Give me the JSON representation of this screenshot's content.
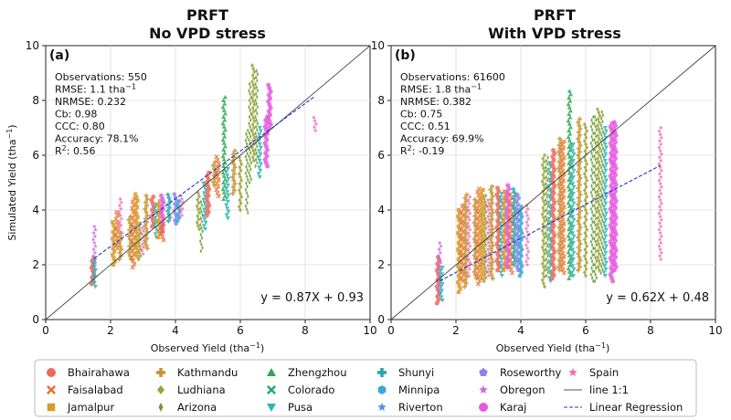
{
  "y_axis_label": "Simulated Yield (tha",
  "y_axis_label_sup": "−1",
  "y_axis_label_end": ")",
  "legend": {
    "entries": [
      {
        "name": "Bhairahawa",
        "color": "#ec6a5c",
        "marker": "circle"
      },
      {
        "name": "Faisalabad",
        "color": "#e8702a",
        "marker": "x"
      },
      {
        "name": "Jamalpur",
        "color": "#d89a2a",
        "marker": "square"
      },
      {
        "name": "Kathmandu",
        "color": "#c6922e",
        "marker": "plus"
      },
      {
        "name": "Ludhiana",
        "color": "#9aa234",
        "marker": "diamond"
      },
      {
        "name": "Arizona",
        "color": "#6c9b32",
        "marker": "thin-diamond"
      },
      {
        "name": "Zhengzhou",
        "color": "#2eaa56",
        "marker": "triangle-up"
      },
      {
        "name": "Colorado",
        "color": "#1ea882",
        "marker": "x"
      },
      {
        "name": "Pusa",
        "color": "#2cb5b5",
        "marker": "triangle-down"
      },
      {
        "name": "Shunyi",
        "color": "#22a7b0",
        "marker": "plus"
      },
      {
        "name": "Minnipa",
        "color": "#3ba6d8",
        "marker": "hexagon"
      },
      {
        "name": "Riverton",
        "color": "#5a8fe0",
        "marker": "star"
      },
      {
        "name": "Roseworthy",
        "color": "#8f82e6",
        "marker": "pentagon"
      },
      {
        "name": "Obregon",
        "color": "#c46ce6",
        "marker": "star"
      },
      {
        "name": "Karaj",
        "color": "#e45ae0",
        "marker": "circle"
      },
      {
        "name": "Spain",
        "color": "#ee6cb8",
        "marker": "star"
      },
      {
        "name": "line 1:1",
        "color": "#555555",
        "marker": "line"
      },
      {
        "name": "Linear Regression",
        "color": "#2233cc",
        "marker": "dashed"
      }
    ]
  },
  "chart_data": [
    {
      "type": "scatter",
      "title_line1": "PRFT",
      "title_line2": "No VPD stress",
      "panel_label": "(a)",
      "xlabel": "Observed Yield (tha",
      "xlabel_sup": "−1",
      "xlabel_end": ")",
      "xlim": [
        0,
        10
      ],
      "ylim": [
        0,
        10
      ],
      "xticks": [
        0,
        2,
        4,
        6,
        8,
        10
      ],
      "yticks": [
        0,
        2,
        4,
        6,
        8,
        10
      ],
      "grid": true,
      "stats": [
        {
          "text": "Observations: 550"
        },
        {
          "text": "RMSE: 1.1 tha",
          "sup": "−1"
        },
        {
          "text": "NRMSE: 0.232"
        },
        {
          "text": "Cb: 0.98"
        },
        {
          "text": "CCC: 0.80"
        },
        {
          "text": "Accuracy: 78.1%"
        },
        {
          "text": "R",
          "sup": "2",
          "after": ": 0.56"
        }
      ],
      "equation": "y = 0.87X + 0.93",
      "regression": {
        "slope": 0.87,
        "intercept": 0.93,
        "x_range": [
          1.5,
          8.3
        ]
      },
      "columns": [
        {
          "x": 1.45,
          "y": [
            1.3,
            2.3
          ],
          "site": 0
        },
        {
          "x": 1.5,
          "y": [
            1.6,
            3.4
          ],
          "site": 13
        },
        {
          "x": 1.5,
          "y": [
            1.2,
            2.2
          ],
          "site": 8
        },
        {
          "x": 2.1,
          "y": [
            2.0,
            3.6
          ],
          "site": 2
        },
        {
          "x": 2.2,
          "y": [
            2.6,
            4.0
          ],
          "site": 1
        },
        {
          "x": 2.3,
          "y": [
            2.2,
            3.2
          ],
          "site": 3
        },
        {
          "x": 2.3,
          "y": [
            3.2,
            4.4
          ],
          "site": 15
        },
        {
          "x": 2.6,
          "y": [
            2.2,
            3.8
          ],
          "site": 3
        },
        {
          "x": 2.7,
          "y": [
            1.9,
            4.5
          ],
          "site": 1
        },
        {
          "x": 2.8,
          "y": [
            2.3,
            4.6
          ],
          "site": 2
        },
        {
          "x": 2.9,
          "y": [
            2.2,
            3.6
          ],
          "site": 4
        },
        {
          "x": 3.0,
          "y": [
            2.4,
            3.4
          ],
          "site": 15
        },
        {
          "x": 3.1,
          "y": [
            2.6,
            4.6
          ],
          "site": 3
        },
        {
          "x": 3.3,
          "y": [
            3.4,
            4.5
          ],
          "site": 0
        },
        {
          "x": 3.4,
          "y": [
            3.0,
            4.3
          ],
          "site": 8
        },
        {
          "x": 3.5,
          "y": [
            3.0,
            4.4
          ],
          "site": 2
        },
        {
          "x": 3.6,
          "y": [
            3.2,
            4.6
          ],
          "site": 14
        },
        {
          "x": 3.6,
          "y": [
            2.9,
            3.6
          ],
          "site": 1
        },
        {
          "x": 3.8,
          "y": [
            3.6,
            4.6
          ],
          "site": 9
        },
        {
          "x": 4.0,
          "y": [
            3.5,
            4.6
          ],
          "site": 12
        },
        {
          "x": 4.1,
          "y": [
            3.6,
            4.4
          ],
          "site": 10
        },
        {
          "x": 4.2,
          "y": [
            3.8,
            4.6
          ],
          "site": 15
        },
        {
          "x": 4.7,
          "y": [
            3.3,
            4.7
          ],
          "site": 4
        },
        {
          "x": 4.8,
          "y": [
            2.5,
            4.3
          ],
          "site": 5
        },
        {
          "x": 4.9,
          "y": [
            3.3,
            5.0
          ],
          "site": 8
        },
        {
          "x": 5.0,
          "y": [
            3.8,
            5.4
          ],
          "site": 0
        },
        {
          "x": 5.2,
          "y": [
            4.9,
            5.8
          ],
          "site": 3
        },
        {
          "x": 5.3,
          "y": [
            4.5,
            6.0
          ],
          "site": 1
        },
        {
          "x": 5.5,
          "y": [
            4.4,
            8.2
          ],
          "site": 6
        },
        {
          "x": 5.6,
          "y": [
            3.7,
            5.5
          ],
          "site": 8
        },
        {
          "x": 5.8,
          "y": [
            4.6,
            6.2
          ],
          "site": 3
        },
        {
          "x": 6.0,
          "y": [
            4.0,
            6.0
          ],
          "site": 4
        },
        {
          "x": 6.2,
          "y": [
            3.9,
            7.0
          ],
          "site": 5
        },
        {
          "x": 6.3,
          "y": [
            5.0,
            8.6
          ],
          "site": 5
        },
        {
          "x": 6.4,
          "y": [
            5.8,
            9.3
          ],
          "site": 4
        },
        {
          "x": 6.5,
          "y": [
            5.6,
            9.1
          ],
          "site": 5
        },
        {
          "x": 6.6,
          "y": [
            5.2,
            7.0
          ],
          "site": 8
        },
        {
          "x": 6.8,
          "y": [
            5.6,
            7.4
          ],
          "site": 14
        },
        {
          "x": 6.9,
          "y": [
            7.0,
            8.6
          ],
          "site": 14
        },
        {
          "x": 8.3,
          "y": [
            6.9,
            7.4
          ],
          "site": 15
        }
      ]
    },
    {
      "type": "scatter",
      "title_line1": "PRFT",
      "title_line2": "With VPD stress",
      "panel_label": "(b)",
      "xlabel": "Observed Yield (tha",
      "xlabel_sup": "−1",
      "xlabel_end": ")",
      "xlim": [
        0,
        10
      ],
      "ylim": [
        0,
        10
      ],
      "xticks": [
        0,
        2,
        4,
        6,
        8,
        10
      ],
      "yticks": [
        0,
        2,
        4,
        6,
        8,
        10
      ],
      "grid": true,
      "stats": [
        {
          "text": "Observations: 61600"
        },
        {
          "text": "RMSE: 1.8 tha",
          "sup": "−1"
        },
        {
          "text": "NRMSE: 0.382"
        },
        {
          "text": "Cb: 0.75"
        },
        {
          "text": "CCC: 0.51"
        },
        {
          "text": "Accuracy: 69.9%"
        },
        {
          "text": "R",
          "sup": "2",
          "after": ": -0.19"
        }
      ],
      "equation": "y = 0.62X + 0.48",
      "regression": {
        "slope": 0.62,
        "intercept": 0.48,
        "x_range": [
          1.5,
          8.3
        ]
      },
      "columns": [
        {
          "x": 1.45,
          "y": [
            0.6,
            2.3
          ],
          "site": 0
        },
        {
          "x": 1.5,
          "y": [
            1.0,
            2.8
          ],
          "site": 13
        },
        {
          "x": 1.55,
          "y": [
            0.7,
            2.0
          ],
          "site": 8
        },
        {
          "x": 2.1,
          "y": [
            1.0,
            4.0
          ],
          "site": 2
        },
        {
          "x": 2.2,
          "y": [
            1.4,
            4.2
          ],
          "site": 1
        },
        {
          "x": 2.3,
          "y": [
            1.2,
            4.6
          ],
          "site": 3
        },
        {
          "x": 2.4,
          "y": [
            1.6,
            4.5
          ],
          "site": 15
        },
        {
          "x": 2.6,
          "y": [
            1.5,
            4.4
          ],
          "site": 3
        },
        {
          "x": 2.7,
          "y": [
            1.3,
            4.8
          ],
          "site": 1
        },
        {
          "x": 2.8,
          "y": [
            1.5,
            4.8
          ],
          "site": 2
        },
        {
          "x": 2.9,
          "y": [
            1.4,
            4.6
          ],
          "site": 4
        },
        {
          "x": 3.0,
          "y": [
            1.6,
            4.4
          ],
          "site": 15
        },
        {
          "x": 3.1,
          "y": [
            1.5,
            4.9
          ],
          "site": 3
        },
        {
          "x": 3.3,
          "y": [
            1.8,
            4.8
          ],
          "site": 0
        },
        {
          "x": 3.4,
          "y": [
            1.6,
            4.6
          ],
          "site": 8
        },
        {
          "x": 3.5,
          "y": [
            1.8,
            4.7
          ],
          "site": 2
        },
        {
          "x": 3.6,
          "y": [
            1.9,
            5.0
          ],
          "site": 14
        },
        {
          "x": 3.7,
          "y": [
            1.7,
            4.6
          ],
          "site": 1
        },
        {
          "x": 3.8,
          "y": [
            2.0,
            4.8
          ],
          "site": 9
        },
        {
          "x": 3.9,
          "y": [
            1.8,
            4.6
          ],
          "site": 12
        },
        {
          "x": 4.0,
          "y": [
            1.6,
            4.2
          ],
          "site": 10
        },
        {
          "x": 4.2,
          "y": [
            2.0,
            4.2
          ],
          "site": 15
        },
        {
          "x": 4.7,
          "y": [
            1.2,
            6.0
          ],
          "site": 4
        },
        {
          "x": 4.8,
          "y": [
            1.6,
            6.0
          ],
          "site": 5
        },
        {
          "x": 4.9,
          "y": [
            1.4,
            5.8
          ],
          "site": 8
        },
        {
          "x": 5.0,
          "y": [
            1.5,
            6.2
          ],
          "site": 0
        },
        {
          "x": 5.2,
          "y": [
            1.8,
            6.6
          ],
          "site": 3
        },
        {
          "x": 5.3,
          "y": [
            1.7,
            6.6
          ],
          "site": 1
        },
        {
          "x": 5.5,
          "y": [
            1.5,
            8.4
          ],
          "site": 6
        },
        {
          "x": 5.6,
          "y": [
            1.6,
            6.4
          ],
          "site": 8
        },
        {
          "x": 5.8,
          "y": [
            1.8,
            7.4
          ],
          "site": 3
        },
        {
          "x": 6.0,
          "y": [
            1.6,
            7.2
          ],
          "site": 4
        },
        {
          "x": 6.2,
          "y": [
            1.4,
            7.4
          ],
          "site": 5
        },
        {
          "x": 6.3,
          "y": [
            1.4,
            7.5
          ],
          "site": 5
        },
        {
          "x": 6.4,
          "y": [
            1.8,
            7.7
          ],
          "site": 4
        },
        {
          "x": 6.5,
          "y": [
            1.7,
            7.6
          ],
          "site": 5
        },
        {
          "x": 6.6,
          "y": [
            1.6,
            7.0
          ],
          "site": 8
        },
        {
          "x": 6.8,
          "y": [
            1.4,
            7.2
          ],
          "site": 14
        },
        {
          "x": 6.9,
          "y": [
            1.8,
            7.3
          ],
          "site": 14
        },
        {
          "x": 8.3,
          "y": [
            2.2,
            7.0
          ],
          "site": 15
        }
      ]
    }
  ]
}
